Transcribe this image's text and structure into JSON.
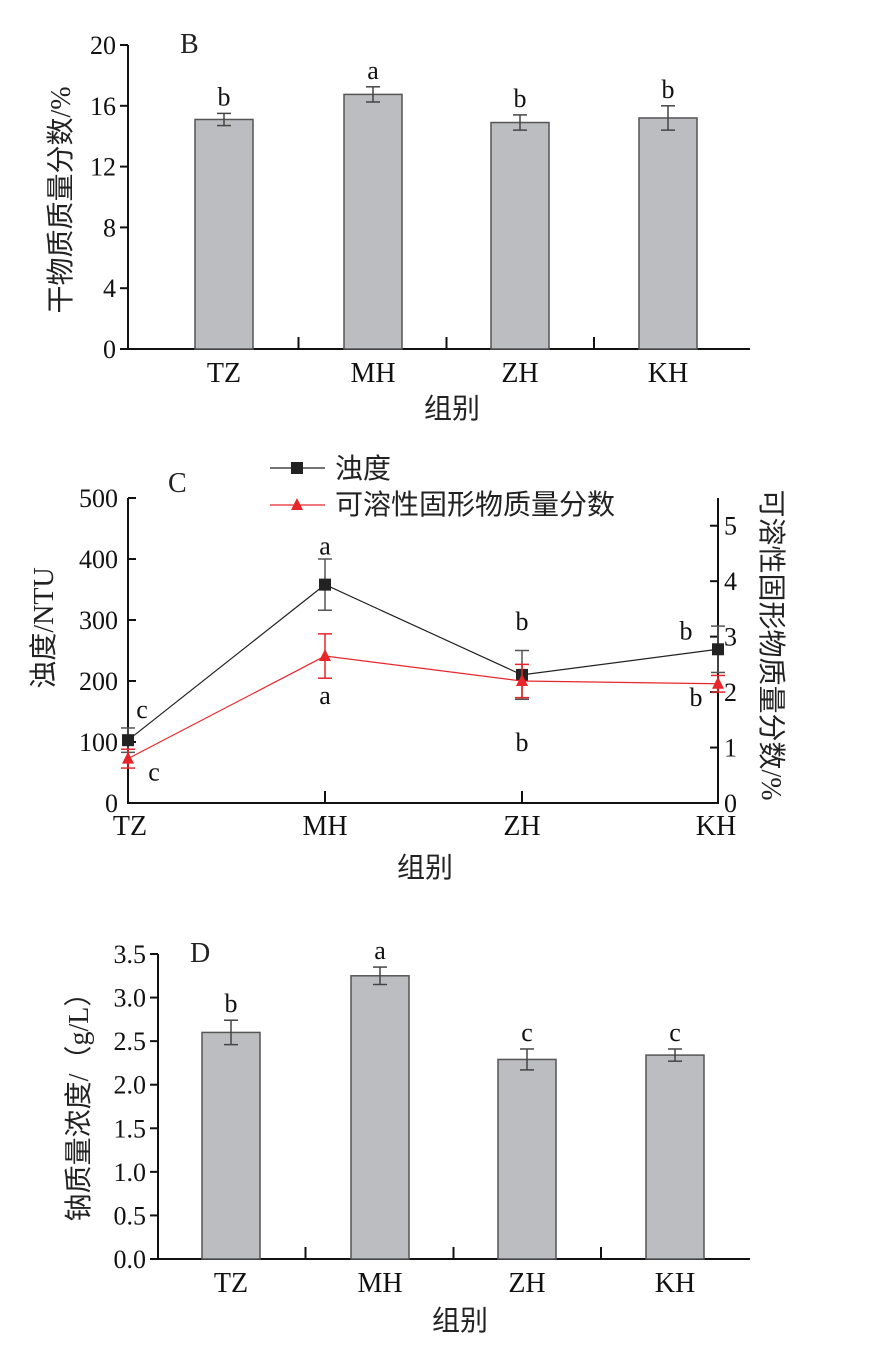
{
  "chart_data": [
    {
      "type": "bar",
      "panel": "B",
      "categories": [
        "TZ",
        "MH",
        "ZH",
        "KH"
      ],
      "values": [
        15.1,
        16.75,
        14.9,
        15.2
      ],
      "errors": [
        0.4,
        0.5,
        0.5,
        0.8
      ],
      "significance": [
        "b",
        "a",
        "b",
        "b"
      ],
      "xlabel": "组别",
      "ylabel": "干物质质量分数/%",
      "ylim": [
        0,
        20
      ],
      "yticks": [
        "0",
        "4",
        "8",
        "12",
        "16",
        "20"
      ],
      "bar_color": "#bcbdc0"
    },
    {
      "type": "line",
      "panel": "C",
      "categories": [
        "TZ",
        "MH",
        "ZH",
        "KH"
      ],
      "xlabel": "组别",
      "ylabel": "浊度/NTU",
      "ylabel_right": "可溶性固形物质量分数/%",
      "ylim": [
        0,
        500
      ],
      "ylim_right": [
        0,
        5.5
      ],
      "yticks": [
        "0",
        "100",
        "200",
        "300",
        "400",
        "500"
      ],
      "yticks_right": [
        "0",
        "1",
        "2",
        "3",
        "4",
        "5"
      ],
      "legend_position": "top",
      "series": [
        {
          "name": "浊度",
          "axis": "left",
          "color": "#222222",
          "marker": "square",
          "values": [
            103,
            358,
            210,
            252
          ],
          "errors": [
            20,
            42,
            40,
            38
          ],
          "significance": [
            "c",
            "a",
            "b",
            "b"
          ]
        },
        {
          "name": "可溶性固形物质量分数",
          "axis": "right",
          "color": "#e8262a",
          "marker": "triangle",
          "values": [
            0.8,
            2.65,
            2.2,
            2.15
          ],
          "errors": [
            0.17,
            0.4,
            0.3,
            0.15
          ],
          "significance": [
            "c",
            "a",
            "b",
            "b"
          ]
        }
      ]
    },
    {
      "type": "bar",
      "panel": "D",
      "categories": [
        "TZ",
        "MH",
        "ZH",
        "KH"
      ],
      "values": [
        2.6,
        3.25,
        2.29,
        2.34
      ],
      "errors": [
        0.14,
        0.1,
        0.12,
        0.07
      ],
      "significance": [
        "b",
        "a",
        "c",
        "c"
      ],
      "xlabel": "组别",
      "ylabel": "钠质量浓度/（g/L）",
      "ylim": [
        0,
        3.5
      ],
      "yticks": [
        "0.0",
        "0.5",
        "1.0",
        "1.5",
        "2.0",
        "2.5",
        "3.0",
        "3.5"
      ],
      "bar_color": "#bcbdc0"
    }
  ]
}
